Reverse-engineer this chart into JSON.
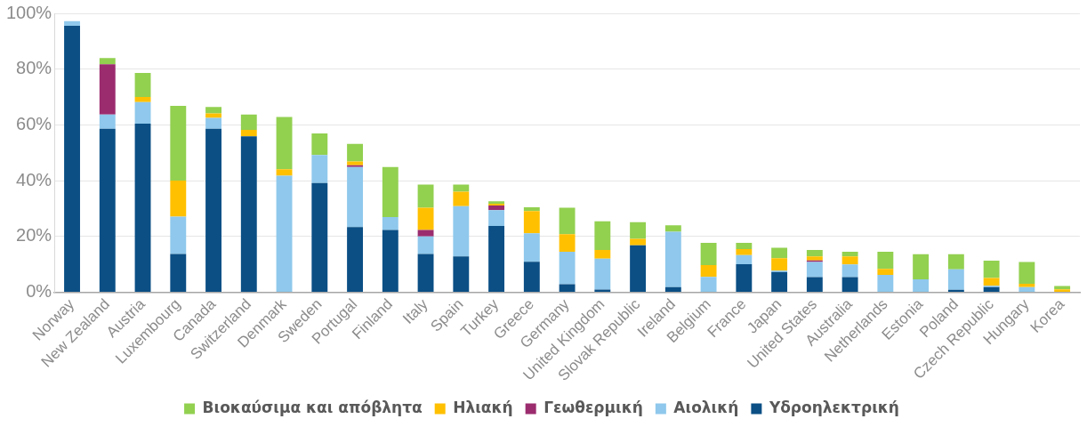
{
  "chart_data": {
    "type": "bar",
    "stacked": true,
    "categories": [
      "Norway",
      "New Zealand",
      "Austria",
      "Luxembourg",
      "Canada",
      "Switzerland",
      "Denmark",
      "Sweden",
      "Portugal",
      "Finland",
      "Italy",
      "Spain",
      "Turkey",
      "Greece",
      "Germany",
      "United Kingdom",
      "Slovak Republic",
      "Ireland",
      "Belgium",
      "France",
      "Japan",
      "United States",
      "Australia",
      "Netherlands",
      "Estonia",
      "Poland",
      "Czech Republic",
      "Hungary",
      "Korea"
    ],
    "series": [
      {
        "name": "Υδροηλεκτρική",
        "color": "#0b4f85",
        "values": [
          95.5,
          58.6,
          60.4,
          13.7,
          58.6,
          55.9,
          0,
          39.1,
          23.3,
          22.3,
          13.7,
          12.8,
          23.7,
          10.9,
          2.8,
          0.9,
          16.8,
          1.8,
          0,
          10,
          7.2,
          5.4,
          5.4,
          0,
          0,
          0.8,
          1.8,
          0,
          0
        ]
      },
      {
        "name": "Αιολική",
        "color": "#8fc8ec",
        "values": [
          1.7,
          5.1,
          7.8,
          13.4,
          3.9,
          0,
          41.8,
          10.1,
          21.6,
          4.6,
          6.3,
          18,
          5.7,
          10.2,
          11.7,
          11.1,
          0,
          19.9,
          5.5,
          3.3,
          0.5,
          5.4,
          4.5,
          6.2,
          4.6,
          7.4,
          0.5,
          1.8,
          0
        ]
      },
      {
        "name": "Γεωθερμική",
        "color": "#9b2c6e",
        "values": [
          0,
          18,
          0,
          0,
          0,
          0,
          0,
          0,
          0.6,
          0,
          2.3,
          0,
          1.7,
          0,
          0,
          0,
          0,
          0,
          0,
          0,
          0,
          0.6,
          0,
          0,
          0,
          0,
          0,
          0,
          0
        ]
      },
      {
        "name": "Ηλιακή",
        "color": "#ffc000",
        "values": [
          0,
          0,
          1.8,
          12.9,
          1.6,
          2.3,
          2.3,
          0,
          1.4,
          0,
          8,
          5.2,
          0.6,
          8,
          6.3,
          3.1,
          2.3,
          0,
          4.2,
          2.1,
          4.5,
          1.4,
          2.9,
          2.1,
          0,
          0,
          2.8,
          1.2,
          1
        ]
      },
      {
        "name": "Βιοκαύσιμα και απόβλητα",
        "color": "#92d050",
        "values": [
          0,
          2.3,
          8.6,
          26.8,
          2.3,
          5.5,
          18.7,
          7.7,
          6.3,
          18,
          8.3,
          2.6,
          0.9,
          1.3,
          9.5,
          10.3,
          6,
          2.3,
          8,
          2.3,
          3.7,
          2.3,
          1.7,
          6.2,
          9,
          5.4,
          6.2,
          7.8,
          1.2
        ]
      }
    ],
    "ylim": [
      0,
      100
    ],
    "yticks": [
      {
        "value": 0,
        "label": "0%"
      },
      {
        "value": 20,
        "label": "20%"
      },
      {
        "value": 40,
        "label": "40%"
      },
      {
        "value": 60,
        "label": "60%"
      },
      {
        "value": 80,
        "label": "80%"
      },
      {
        "value": 100,
        "label": "100%"
      }
    ],
    "grid": "y",
    "legend": "bottom"
  }
}
